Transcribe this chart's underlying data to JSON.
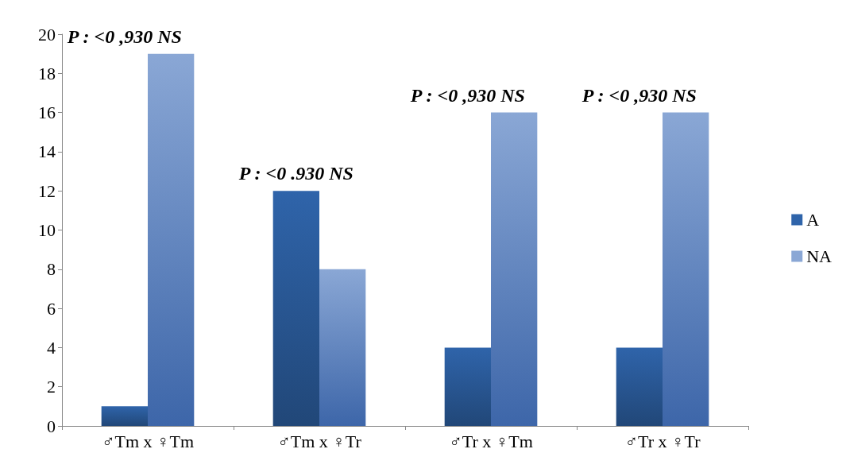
{
  "chart_data": {
    "type": "bar",
    "categories": [
      "♂Tm x ♀Tm",
      "♂Tm x ♀Tr",
      "♂Tr x ♀Tm",
      "♂Tr x ♀Tr"
    ],
    "series": [
      {
        "name": "A",
        "color": "#2f64aa",
        "values": [
          1,
          12,
          4,
          4
        ]
      },
      {
        "name": "NA",
        "color": "#8aa7d5",
        "values": [
          19,
          8,
          16,
          16
        ]
      }
    ],
    "ylim": [
      0,
      20
    ],
    "yticks": [
      0,
      2,
      4,
      6,
      8,
      10,
      12,
      14,
      16,
      18,
      20
    ],
    "grid": false,
    "legend": "right",
    "annotations": [
      {
        "text": "P : <0 ,930 NS",
        "x": "♂Tm x ♀Tm",
        "y": 19
      },
      {
        "text": "P : <0 .930 NS",
        "x": "♂Tm x ♀Tr",
        "y": 12
      },
      {
        "text": "P : <0 ,930 NS",
        "x": "♂Tr x ♀Tm",
        "y": 16
      },
      {
        "text": "P : <0 ,930 NS",
        "x": "♂Tr x ♀Tr",
        "y": 16
      }
    ]
  }
}
